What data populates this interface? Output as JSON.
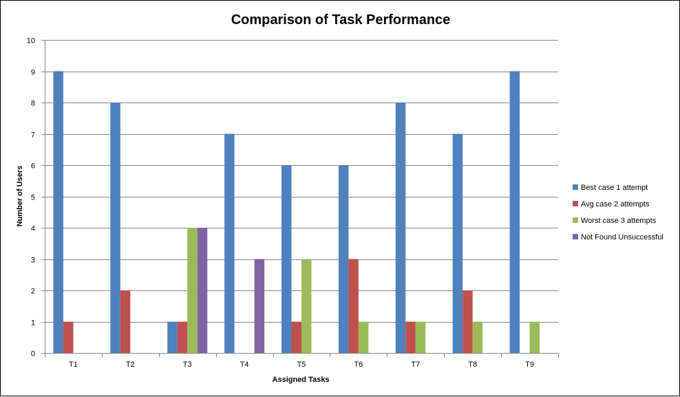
{
  "chart_data": {
    "type": "bar",
    "title": "Comparison of Task Performance",
    "xlabel": "Assigned Tasks",
    "ylabel": "Number of Users",
    "categories": [
      "T1",
      "T2",
      "T3",
      "T4",
      "T5",
      "T6",
      "T7",
      "T8",
      "T9"
    ],
    "ylim": [
      0,
      10
    ],
    "yticks": [
      0,
      1,
      2,
      3,
      4,
      5,
      6,
      7,
      8,
      9,
      10
    ],
    "grid": true,
    "legend_position": "right",
    "series": [
      {
        "name": "Best case 1 attempt",
        "color": "#4F81BD",
        "values": [
          9,
          8,
          1,
          7,
          6,
          6,
          8,
          7,
          9
        ]
      },
      {
        "name": "Avg case 2  attempts",
        "color": "#C0504D",
        "values": [
          1,
          2,
          1,
          0,
          1,
          3,
          1,
          2,
          0
        ]
      },
      {
        "name": "Worst case 3  attempts",
        "color": "#9BBB59",
        "values": [
          0,
          0,
          4,
          0,
          3,
          1,
          1,
          1,
          1
        ]
      },
      {
        "name": "Not Found Unsuccessful",
        "color": "#8064A2",
        "values": [
          0,
          0,
          4,
          3,
          0,
          0,
          0,
          0,
          0
        ]
      }
    ]
  }
}
